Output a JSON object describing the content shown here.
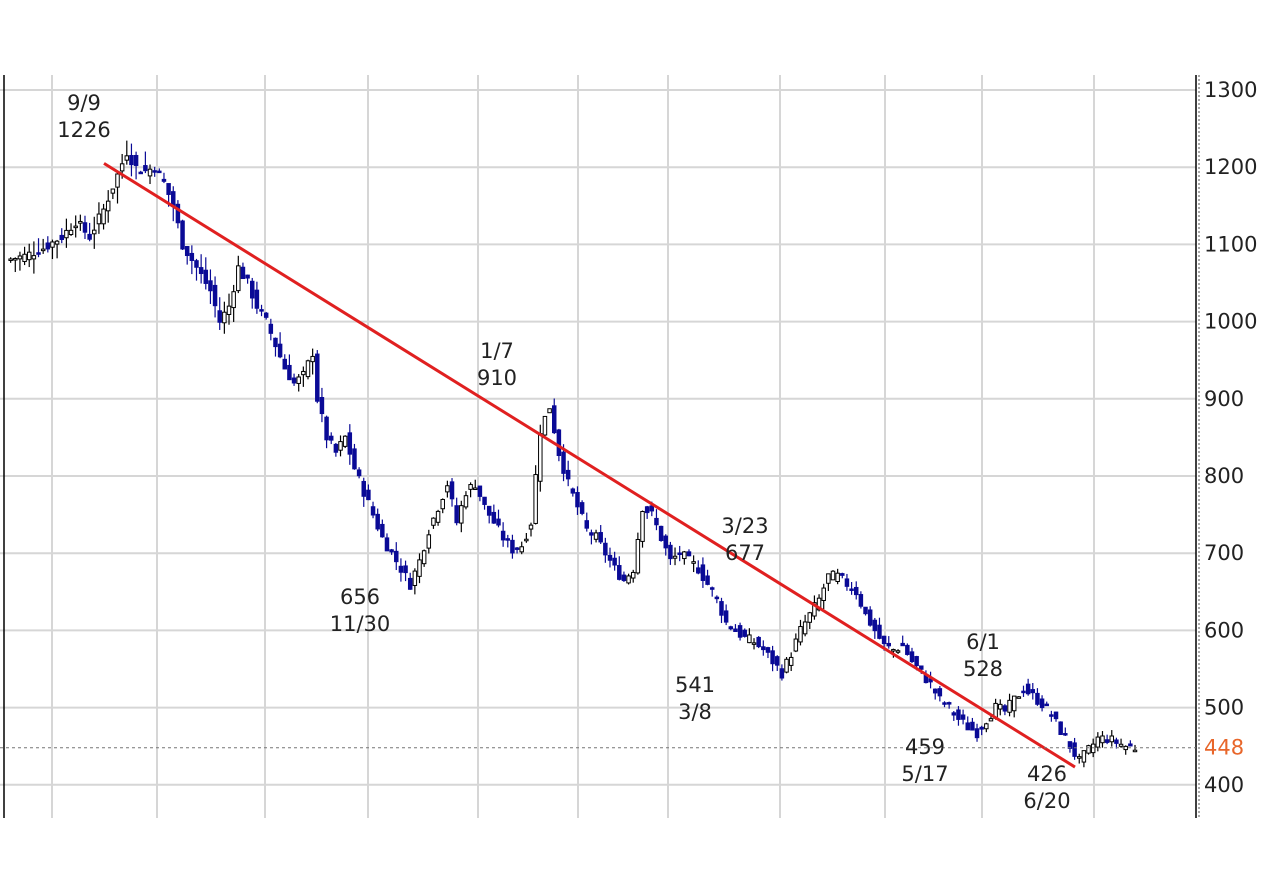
{
  "chart_data": {
    "type": "candlestick",
    "ylim": [
      400,
      1300
    ],
    "y_ticks": [
      "1300",
      "1200",
      "1100",
      "1000",
      "900",
      "800",
      "700",
      "600",
      "500",
      "400"
    ],
    "grid": true,
    "current_price": "448",
    "colors": {
      "up_candle": "#000000",
      "down_candle": "#0a0a96",
      "trendline": "#e02020",
      "current_price": "#e8662a",
      "grid": "#d6d6d6"
    },
    "annotations": [
      {
        "date": "9/9",
        "value": "1226",
        "kind": "high"
      },
      {
        "date": "1/7",
        "value": "910",
        "kind": "high"
      },
      {
        "date": "3/23",
        "value": "677",
        "kind": "high"
      },
      {
        "date": "6/1",
        "value": "528",
        "kind": "high"
      },
      {
        "date": "11/30",
        "value": "656",
        "kind": "low"
      },
      {
        "date": "3/8",
        "value": "541",
        "kind": "low"
      },
      {
        "date": "5/17",
        "value": "459",
        "kind": "low"
      },
      {
        "date": "6/20",
        "value": "426",
        "kind": "low"
      }
    ],
    "trendline": {
      "from": {
        "date": "9/9",
        "price": 1205
      },
      "to": {
        "date": "6/20",
        "price": 423
      }
    },
    "price_path": [
      [
        0,
        1080
      ],
      [
        4,
        1085
      ],
      [
        8,
        1095
      ],
      [
        12,
        1110
      ],
      [
        15,
        1130
      ],
      [
        18,
        1110
      ],
      [
        21,
        1145
      ],
      [
        24,
        1190
      ],
      [
        26,
        1220
      ],
      [
        28,
        1200
      ],
      [
        30,
        1195
      ],
      [
        32,
        1200
      ],
      [
        34,
        1180
      ],
      [
        36,
        1150
      ],
      [
        38,
        1100
      ],
      [
        40,
        1080
      ],
      [
        42,
        1060
      ],
      [
        44,
        1040
      ],
      [
        46,
        1000
      ],
      [
        48,
        1020
      ],
      [
        50,
        1070
      ],
      [
        52,
        1050
      ],
      [
        54,
        1020
      ],
      [
        56,
        1000
      ],
      [
        58,
        970
      ],
      [
        60,
        940
      ],
      [
        62,
        920
      ],
      [
        64,
        930
      ],
      [
        66,
        960
      ],
      [
        67,
        900
      ],
      [
        69,
        850
      ],
      [
        71,
        830
      ],
      [
        73,
        850
      ],
      [
        75,
        810
      ],
      [
        77,
        780
      ],
      [
        79,
        750
      ],
      [
        81,
        720
      ],
      [
        83,
        700
      ],
      [
        85,
        680
      ],
      [
        87,
        660
      ],
      [
        89,
        690
      ],
      [
        91,
        730
      ],
      [
        93,
        760
      ],
      [
        95,
        790
      ],
      [
        97,
        740
      ],
      [
        99,
        780
      ],
      [
        101,
        790
      ],
      [
        103,
        760
      ],
      [
        105,
        740
      ],
      [
        107,
        720
      ],
      [
        109,
        705
      ],
      [
        111,
        710
      ],
      [
        113,
        740
      ],
      [
        115,
        860
      ],
      [
        117,
        890
      ],
      [
        119,
        830
      ],
      [
        121,
        790
      ],
      [
        123,
        760
      ],
      [
        125,
        730
      ],
      [
        127,
        720
      ],
      [
        129,
        700
      ],
      [
        131,
        680
      ],
      [
        133,
        665
      ],
      [
        135,
        680
      ],
      [
        137,
        760
      ],
      [
        139,
        750
      ],
      [
        141,
        720
      ],
      [
        143,
        690
      ],
      [
        145,
        700
      ],
      [
        147,
        690
      ],
      [
        149,
        680
      ],
      [
        151,
        660
      ],
      [
        153,
        640
      ],
      [
        155,
        610
      ],
      [
        157,
        600
      ],
      [
        159,
        590
      ],
      [
        161,
        585
      ],
      [
        163,
        575
      ],
      [
        165,
        560
      ],
      [
        167,
        545
      ],
      [
        169,
        570
      ],
      [
        171,
        600
      ],
      [
        173,
        620
      ],
      [
        175,
        640
      ],
      [
        177,
        670
      ],
      [
        179,
        670
      ],
      [
        181,
        660
      ],
      [
        183,
        650
      ],
      [
        185,
        620
      ],
      [
        187,
        600
      ],
      [
        189,
        580
      ],
      [
        191,
        575
      ],
      [
        193,
        580
      ],
      [
        195,
        560
      ],
      [
        197,
        545
      ],
      [
        199,
        530
      ],
      [
        201,
        510
      ],
      [
        203,
        500
      ],
      [
        205,
        485
      ],
      [
        207,
        475
      ],
      [
        209,
        468
      ],
      [
        211,
        485
      ],
      [
        213,
        500
      ],
      [
        215,
        495
      ],
      [
        217,
        510
      ],
      [
        219,
        525
      ],
      [
        221,
        515
      ],
      [
        223,
        505
      ],
      [
        225,
        490
      ],
      [
        227,
        470
      ],
      [
        229,
        450
      ],
      [
        231,
        430
      ],
      [
        233,
        445
      ],
      [
        235,
        460
      ],
      [
        237,
        460
      ],
      [
        239,
        455
      ],
      [
        241,
        450
      ],
      [
        243,
        448
      ]
    ]
  }
}
